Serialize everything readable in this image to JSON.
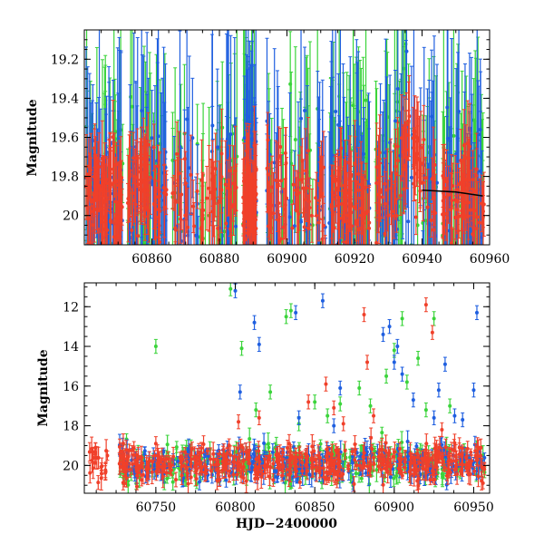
{
  "chart_data": [
    {
      "type": "scatter",
      "panel": "top",
      "title": "",
      "xlabel": "",
      "ylabel": "Magnitude",
      "xlim": [
        60840,
        60960
      ],
      "ylim": [
        20.15,
        19.05
      ],
      "y_inverted": true,
      "xticks": [
        60860,
        60880,
        60900,
        60920,
        60940,
        60960
      ],
      "yticks": [
        19.2,
        19.4,
        19.6,
        19.8,
        20
      ],
      "ytick_labels": [
        "19.2",
        "19.4",
        "19.6",
        "19.8",
        "20"
      ],
      "grid": false,
      "legend": "none",
      "series": [
        {
          "color": "#3bd43b",
          "point_count": 900
        },
        {
          "color": "#1f5fe0",
          "point_count": 900
        },
        {
          "color": "#f0402a",
          "point_count": 1600
        }
      ],
      "model_curve": {
        "color": "#000000",
        "x": [
          60940,
          60950,
          60958
        ],
        "y": [
          19.87,
          19.88,
          19.9
        ]
      }
    },
    {
      "type": "scatter",
      "panel": "bottom",
      "title": "",
      "xlabel": "HJD−2400000",
      "ylabel": "Magnitude",
      "xlim": [
        60705,
        60960
      ],
      "ylim": [
        21.4,
        10.8
      ],
      "y_inverted": true,
      "xticks": [
        60750,
        60800,
        60850,
        60900,
        60950
      ],
      "yticks": [
        12,
        14,
        16,
        18,
        20
      ],
      "ytick_labels": [
        "12",
        "14",
        "16",
        "18",
        "20"
      ],
      "grid": false,
      "legend": "none",
      "baseline_magnitude": 19.9,
      "series": [
        {
          "color": "#3bd43b",
          "point_count": 700,
          "outliers": [
            [
              60750,
              14.0
            ],
            [
              60797,
              11.1
            ],
            [
              60804,
              14.1
            ],
            [
              60813,
              17.2
            ],
            [
              60822,
              16.3
            ],
            [
              60832,
              12.5
            ],
            [
              60835,
              12.2
            ],
            [
              60840,
              17.9
            ],
            [
              60850,
              16.8
            ],
            [
              60858,
              17.5
            ],
            [
              60866,
              16.9
            ],
            [
              60878,
              16.1
            ],
            [
              60885,
              17.0
            ],
            [
              60895,
              15.5
            ],
            [
              60900,
              14.2
            ],
            [
              60905,
              12.6
            ],
            [
              60908,
              15.8
            ],
            [
              60915,
              14.6
            ],
            [
              60920,
              17.2
            ],
            [
              60925,
              12.6
            ],
            [
              60935,
              17.0
            ]
          ]
        },
        {
          "color": "#1f5fe0",
          "point_count": 700,
          "outliers": [
            [
              60800,
              11.2
            ],
            [
              60803,
              16.3
            ],
            [
              60812,
              12.8
            ],
            [
              60815,
              13.9
            ],
            [
              60838,
              12.3
            ],
            [
              60840,
              17.6
            ],
            [
              60855,
              11.7
            ],
            [
              60862,
              18.0
            ],
            [
              60866,
              16.1
            ],
            [
              60893,
              13.4
            ],
            [
              60897,
              13.0
            ],
            [
              60900,
              14.8
            ],
            [
              60902,
              14.0
            ],
            [
              60905,
              15.4
            ],
            [
              60912,
              16.7
            ],
            [
              60925,
              17.6
            ],
            [
              60928,
              16.2
            ],
            [
              60932,
              14.9
            ],
            [
              60938,
              17.5
            ],
            [
              60943,
              17.7
            ],
            [
              60950,
              16.2
            ],
            [
              60952,
              12.3
            ]
          ]
        },
        {
          "color": "#f0402a",
          "point_count": 1100,
          "outliers": [
            [
              60750,
              18.9
            ],
            [
              60802,
              17.8
            ],
            [
              60815,
              17.6
            ],
            [
              60846,
              16.8
            ],
            [
              60857,
              15.9
            ],
            [
              60862,
              17.1
            ],
            [
              60868,
              17.9
            ],
            [
              60881,
              12.4
            ],
            [
              60883,
              14.8
            ],
            [
              60887,
              17.5
            ],
            [
              60920,
              11.9
            ],
            [
              60924,
              13.3
            ],
            [
              60930,
              18.2
            ]
          ]
        }
      ]
    }
  ]
}
